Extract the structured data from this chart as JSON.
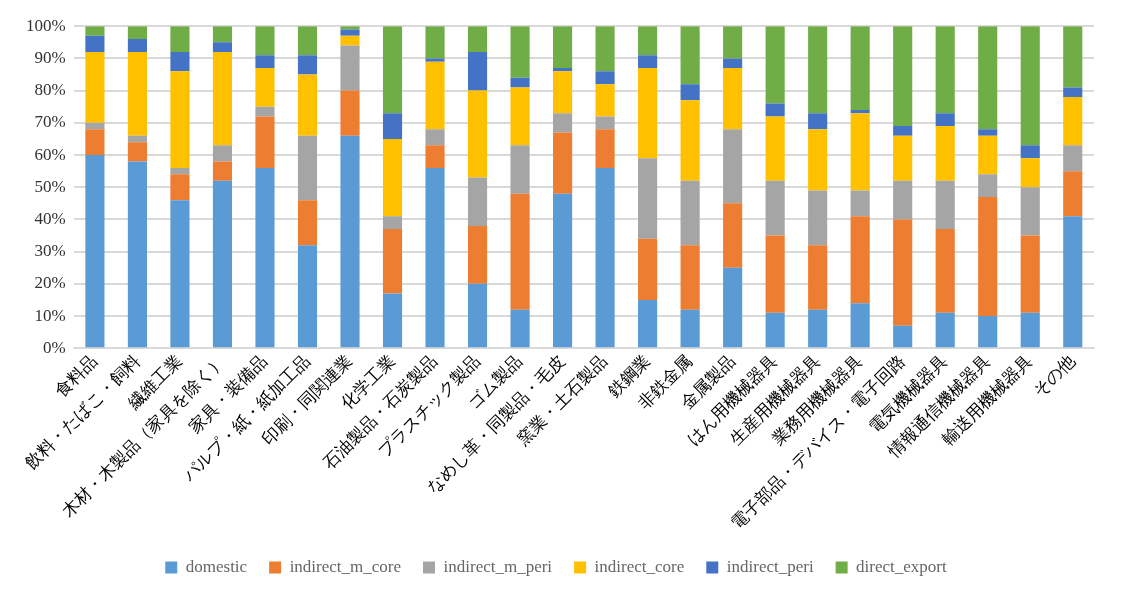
{
  "chart_data": {
    "type": "bar",
    "stacked": true,
    "categories": [
      "食料品",
      "飲料・たばこ・飼料",
      "繊維工業",
      "木材・木製品（家具を除く）",
      "家具・装備品",
      "パルプ・紙・紙加工品",
      "印刷・同関連業",
      "化学工業",
      "石油製品・石炭製品",
      "プラスチック製品",
      "ゴム製品",
      "なめし革・同製品・毛皮",
      "窯業・土石製品",
      "鉄鋼業",
      "非鉄金属",
      "金属製品",
      "はん用機械器具",
      "生産用機械器具",
      "業務用機械器具",
      "電子部品・デバイス・電子回路",
      "電気機械器具",
      "情報通信機械器具",
      "輸送用機械器具",
      "その他"
    ],
    "series": [
      {
        "name": "domestic",
        "color": "#5b9bd5",
        "values": [
          60,
          58,
          46,
          52,
          56,
          32,
          66,
          17,
          56,
          20,
          12,
          48,
          56,
          15,
          12,
          25,
          11,
          12,
          14,
          7,
          11,
          10,
          11,
          41
        ]
      },
      {
        "name": "indirect_m_core",
        "color": "#ed7d31",
        "values": [
          8,
          6,
          8,
          6,
          16,
          14,
          14,
          20,
          7,
          18,
          36,
          19,
          12,
          19,
          20,
          20,
          24,
          20,
          27,
          33,
          26,
          37,
          24,
          14
        ]
      },
      {
        "name": "indirect_m_peri",
        "color": "#a5a5a5",
        "values": [
          2,
          2,
          2,
          5,
          3,
          20,
          14,
          4,
          5,
          15,
          15,
          6,
          4,
          25,
          20,
          23,
          17,
          17,
          8,
          12,
          15,
          7,
          15,
          8
        ]
      },
      {
        "name": "indirect_core",
        "color": "#ffc000",
        "values": [
          22,
          26,
          30,
          29,
          12,
          19,
          3,
          24,
          21,
          27,
          18,
          13,
          10,
          28,
          25,
          19,
          20,
          19,
          24,
          14,
          17,
          12,
          9,
          15
        ]
      },
      {
        "name": "indirect_peri",
        "color": "#4472c4",
        "values": [
          5,
          4,
          6,
          3,
          4,
          6,
          2,
          8,
          1,
          12,
          3,
          1,
          4,
          4,
          5,
          3,
          4,
          5,
          1,
          3,
          4,
          2,
          4,
          3
        ]
      },
      {
        "name": "direct_export",
        "color": "#70ad47",
        "values": [
          3,
          4,
          8,
          5,
          9,
          9,
          1,
          27,
          10,
          8,
          16,
          13,
          14,
          9,
          18,
          10,
          24,
          27,
          26,
          31,
          27,
          32,
          37,
          19
        ]
      }
    ],
    "ylim": [
      0,
      100
    ],
    "yticks": [
      {
        "value": 0,
        "label": "0%"
      },
      {
        "value": 10,
        "label": "10%"
      },
      {
        "value": 20,
        "label": "20%"
      },
      {
        "value": 30,
        "label": "30%"
      },
      {
        "value": 40,
        "label": "40%"
      },
      {
        "value": 50,
        "label": "50%"
      },
      {
        "value": 60,
        "label": "60%"
      },
      {
        "value": 70,
        "label": "70%"
      },
      {
        "value": 80,
        "label": "80%"
      },
      {
        "value": 90,
        "label": "90%"
      },
      {
        "value": 100,
        "label": "100%"
      }
    ],
    "grid": "y",
    "legend": "bottom"
  }
}
